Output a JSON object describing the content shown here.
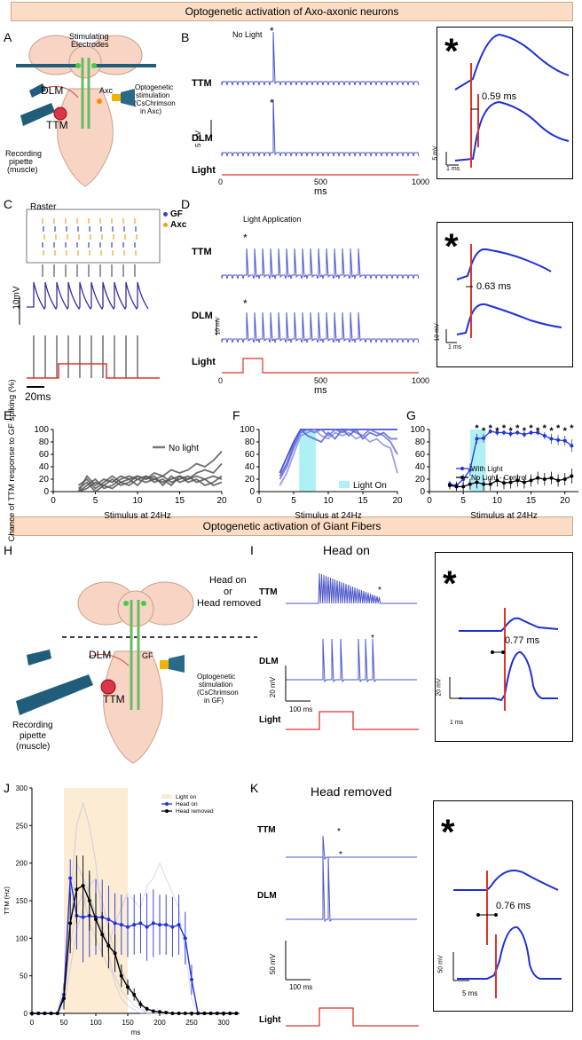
{
  "banners": {
    "top": "Optogenetic activation of Axo-axonic neurons",
    "middle": "Optogenetic activation of Giant Fibers"
  },
  "panels": [
    "A",
    "B",
    "C",
    "D",
    "E",
    "F",
    "G",
    "H",
    "I",
    "J",
    "K"
  ],
  "schematic_a": {
    "electrodes": "Stimulating\nElectrodes",
    "electrodes_l1": "Stimulating",
    "electrodes_l2": "Electrodes",
    "dlm": "DLM",
    "ttm": "TTM",
    "axc": "Axc",
    "opto_l1": "Optogenetic",
    "opto_l2": "stimulation",
    "opto_l3": "(CsChrimson",
    "opto_l4": "in Axc)",
    "pipette_l1": "Recording",
    "pipette_l2": "pipette",
    "pipette_l3": "(muscle)"
  },
  "panel_b": {
    "condition": "No Light",
    "trace_labels": [
      "TTM",
      "DLM",
      "Light"
    ],
    "scale": "5 mV",
    "xticks": [
      "0",
      "500",
      "1000"
    ],
    "xlabel": "ms",
    "inset_latency": "0.59 ms",
    "inset_scale_v": "5 mV",
    "inset_scale_t": "1 ms",
    "star": "*"
  },
  "panel_c": {
    "title": "Raster",
    "legend_gf": "GF",
    "legend_axc": "Axc",
    "scale_v": "10mV",
    "scale_t": "20ms"
  },
  "panel_d": {
    "condition": "Light Application",
    "trace_labels": [
      "TTM",
      "DLM",
      "Light"
    ],
    "scale": "10 mV",
    "xticks": [
      "0",
      "500",
      "1000"
    ],
    "xlabel": "ms",
    "inset_latency": "0.63 ms",
    "inset_scale_v": "10 mV",
    "inset_scale_t": "1 ms"
  },
  "panel_h": {
    "head_l1": "Head on",
    "head_l2": "or",
    "head_l3": "Head removed",
    "dlm": "DLM",
    "ttm": "TTM",
    "gf": "GF",
    "opto_l1": "Optogenetic",
    "opto_l2": "stimulation",
    "opto_l3": "(CsChrimson",
    "opto_l4": "in GF)",
    "pipette_l1": "Recording",
    "pipette_l2": "pipette",
    "pipette_l3": "(muscle)"
  },
  "panel_i": {
    "title": "Head on",
    "trace_labels": [
      "TTM",
      "DLM",
      "Light"
    ],
    "scale_v": "20 mV",
    "scale_t": "100 ms",
    "inset_latency": "0.77 ms",
    "inset_scale_v": "20 mV",
    "inset_scale_t": "1 ms"
  },
  "panel_k": {
    "title": "Head removed",
    "trace_labels": [
      "TTM",
      "DLM",
      "Light"
    ],
    "scale_v": "50 mV",
    "scale_t": "100 ms",
    "inset_latency": "0.76 ms",
    "inset_scale_v": "50 mV",
    "inset_scale_t": "5 ms"
  },
  "colors": {
    "trace": "#4a55c8",
    "inset": "#1f2fd6",
    "red": "#e0332b",
    "cyan": "#aef0f5",
    "gray": "#666666",
    "light_on": "#fbecd3"
  },
  "chart_data": [
    {
      "id": "E",
      "type": "line",
      "title": "",
      "xlabel": "Stimulus at 24Hz",
      "ylabel": "Chance of TTM response to GF spiking (%)",
      "xlim": [
        0,
        20
      ],
      "ylim": [
        0,
        100
      ],
      "xticks": [
        0,
        5,
        10,
        15,
        20
      ],
      "yticks": [
        0,
        20,
        40,
        60,
        80,
        100
      ],
      "legend": [
        "No light"
      ],
      "x": [
        3,
        4,
        5,
        6,
        7,
        8,
        9,
        10,
        11,
        12,
        13,
        14,
        15,
        16,
        17,
        18,
        19,
        20
      ],
      "series": [
        {
          "name": "trial1",
          "values": [
            0,
            25,
            10,
            20,
            15,
            25,
            20,
            25,
            20,
            30,
            25,
            35,
            30,
            35,
            45,
            40,
            50,
            65
          ]
        },
        {
          "name": "trial2",
          "values": [
            10,
            20,
            5,
            15,
            25,
            15,
            20,
            10,
            25,
            20,
            15,
            20,
            25,
            20,
            30,
            35,
            30,
            45
          ]
        },
        {
          "name": "trial3",
          "values": [
            0,
            10,
            20,
            5,
            10,
            20,
            25,
            20,
            15,
            20,
            25,
            15,
            20,
            25,
            15,
            20,
            25,
            20
          ]
        },
        {
          "name": "trial4",
          "values": [
            5,
            15,
            0,
            10,
            20,
            10,
            15,
            25,
            20,
            25,
            10,
            25,
            15,
            20,
            25,
            20,
            10,
            15
          ]
        },
        {
          "name": "trial5",
          "values": [
            0,
            5,
            15,
            10,
            5,
            15,
            10,
            20,
            25,
            15,
            20,
            10,
            25,
            15,
            20,
            10,
            15,
            25
          ]
        }
      ]
    },
    {
      "id": "F",
      "type": "line",
      "xlabel": "Stimulus at 24Hz",
      "xlim": [
        0,
        20
      ],
      "ylim": [
        0,
        100
      ],
      "xticks": [
        0,
        5,
        10,
        15,
        20
      ],
      "yticks": [
        0,
        20,
        40,
        60,
        80,
        100
      ],
      "light_on_range": [
        5.8,
        8.2
      ],
      "legend": [
        "Light On"
      ],
      "x": [
        3,
        4,
        5,
        6,
        7,
        8,
        9,
        10,
        11,
        12,
        13,
        14,
        15,
        16,
        17,
        18,
        19,
        20
      ],
      "series": [
        {
          "name": "trial1",
          "values": [
            30,
            55,
            80,
            100,
            100,
            100,
            100,
            100,
            100,
            100,
            100,
            100,
            100,
            100,
            100,
            100,
            100,
            100
          ]
        },
        {
          "name": "trial2",
          "values": [
            20,
            40,
            70,
            95,
            100,
            95,
            100,
            90,
            100,
            95,
            100,
            95,
            90,
            100,
            95,
            90,
            80,
            60
          ]
        },
        {
          "name": "trial3",
          "values": [
            10,
            30,
            60,
            90,
            95,
            100,
            90,
            85,
            95,
            90,
            95,
            85,
            90,
            80,
            85,
            75,
            70,
            30
          ]
        },
        {
          "name": "trial4",
          "values": [
            25,
            45,
            75,
            100,
            90,
            85,
            80,
            95,
            85,
            100,
            90,
            100,
            85,
            95,
            90,
            95,
            85,
            85
          ]
        }
      ]
    },
    {
      "id": "G",
      "type": "line",
      "xlabel": "Stimulus at 24Hz",
      "xlim": [
        0,
        22
      ],
      "ylim": [
        0,
        100
      ],
      "xticks": [
        0,
        5,
        10,
        15,
        20
      ],
      "yticks": [
        0,
        20,
        40,
        60,
        80,
        100
      ],
      "light_on_range": [
        6,
        8.3
      ],
      "legend": [
        "With Light",
        "No Light - Control"
      ],
      "x": [
        3,
        4,
        5,
        6,
        7,
        8,
        9,
        10,
        11,
        12,
        13,
        14,
        15,
        16,
        17,
        18,
        19,
        20,
        21
      ],
      "series": [
        {
          "name": "With Light",
          "values": [
            12,
            10,
            20,
            35,
            85,
            86,
            97,
            95,
            95,
            93,
            95,
            92,
            95,
            95,
            90,
            85,
            83,
            82,
            74
          ],
          "errors": [
            5,
            6,
            8,
            10,
            8,
            7,
            4,
            5,
            4,
            5,
            4,
            5,
            4,
            4,
            6,
            8,
            8,
            8,
            10
          ]
        },
        {
          "name": "No Light - Control",
          "values": [
            10,
            8,
            8,
            12,
            15,
            12,
            12,
            18,
            14,
            15,
            18,
            15,
            18,
            22,
            20,
            22,
            18,
            20,
            25
          ],
          "errors": [
            6,
            7,
            7,
            9,
            10,
            10,
            10,
            10,
            10,
            10,
            10,
            10,
            10,
            10,
            10,
            10,
            10,
            10,
            12
          ]
        }
      ],
      "star_positions": [
        7,
        8,
        9,
        10,
        11,
        12,
        13,
        14,
        15,
        16,
        17,
        18,
        19,
        20,
        21
      ]
    },
    {
      "id": "J",
      "type": "line",
      "xlabel": "ms",
      "ylabel": "TTM (Hz)",
      "xlim": [
        0,
        325
      ],
      "ylim": [
        0,
        300
      ],
      "xticks": [
        0,
        50,
        100,
        150,
        200,
        250,
        300
      ],
      "yticks": [
        0,
        50,
        100,
        150,
        200,
        250,
        300
      ],
      "light_on_range": [
        50,
        150
      ],
      "legend": [
        "Light on",
        "Head on",
        "Head removed"
      ],
      "x": [
        0,
        10,
        20,
        30,
        40,
        50,
        60,
        70,
        80,
        90,
        100,
        110,
        120,
        130,
        140,
        150,
        160,
        170,
        180,
        190,
        200,
        210,
        220,
        230,
        240,
        250,
        260,
        270,
        280,
        290,
        300,
        310,
        320
      ],
      "series": [
        {
          "name": "Head on",
          "values": [
            0,
            0,
            0,
            0,
            0,
            25,
            180,
            130,
            128,
            130,
            128,
            128,
            125,
            120,
            118,
            115,
            118,
            120,
            115,
            120,
            118,
            118,
            115,
            118,
            100,
            45,
            0,
            0,
            0,
            0,
            0,
            0,
            0
          ],
          "errors": [
            0,
            0,
            0,
            0,
            0,
            15,
            25,
            45,
            60,
            55,
            50,
            50,
            45,
            40,
            40,
            40,
            40,
            40,
            45,
            45,
            40,
            40,
            40,
            40,
            35,
            20,
            0,
            0,
            0,
            0,
            0,
            0,
            0
          ]
        },
        {
          "name": "Head removed",
          "values": [
            0,
            0,
            0,
            0,
            0,
            20,
            120,
            165,
            170,
            150,
            125,
            105,
            90,
            80,
            50,
            35,
            25,
            12,
            6,
            3,
            2,
            1,
            0,
            0,
            0,
            0,
            0,
            0,
            0,
            0,
            0,
            0,
            0
          ],
          "errors": [
            0,
            0,
            0,
            0,
            0,
            15,
            40,
            45,
            40,
            40,
            35,
            30,
            30,
            25,
            15,
            10,
            8,
            5,
            3,
            2,
            1,
            1,
            0,
            0,
            0,
            0,
            0,
            0,
            0,
            0,
            0,
            0,
            0
          ]
        }
      ]
    }
  ]
}
